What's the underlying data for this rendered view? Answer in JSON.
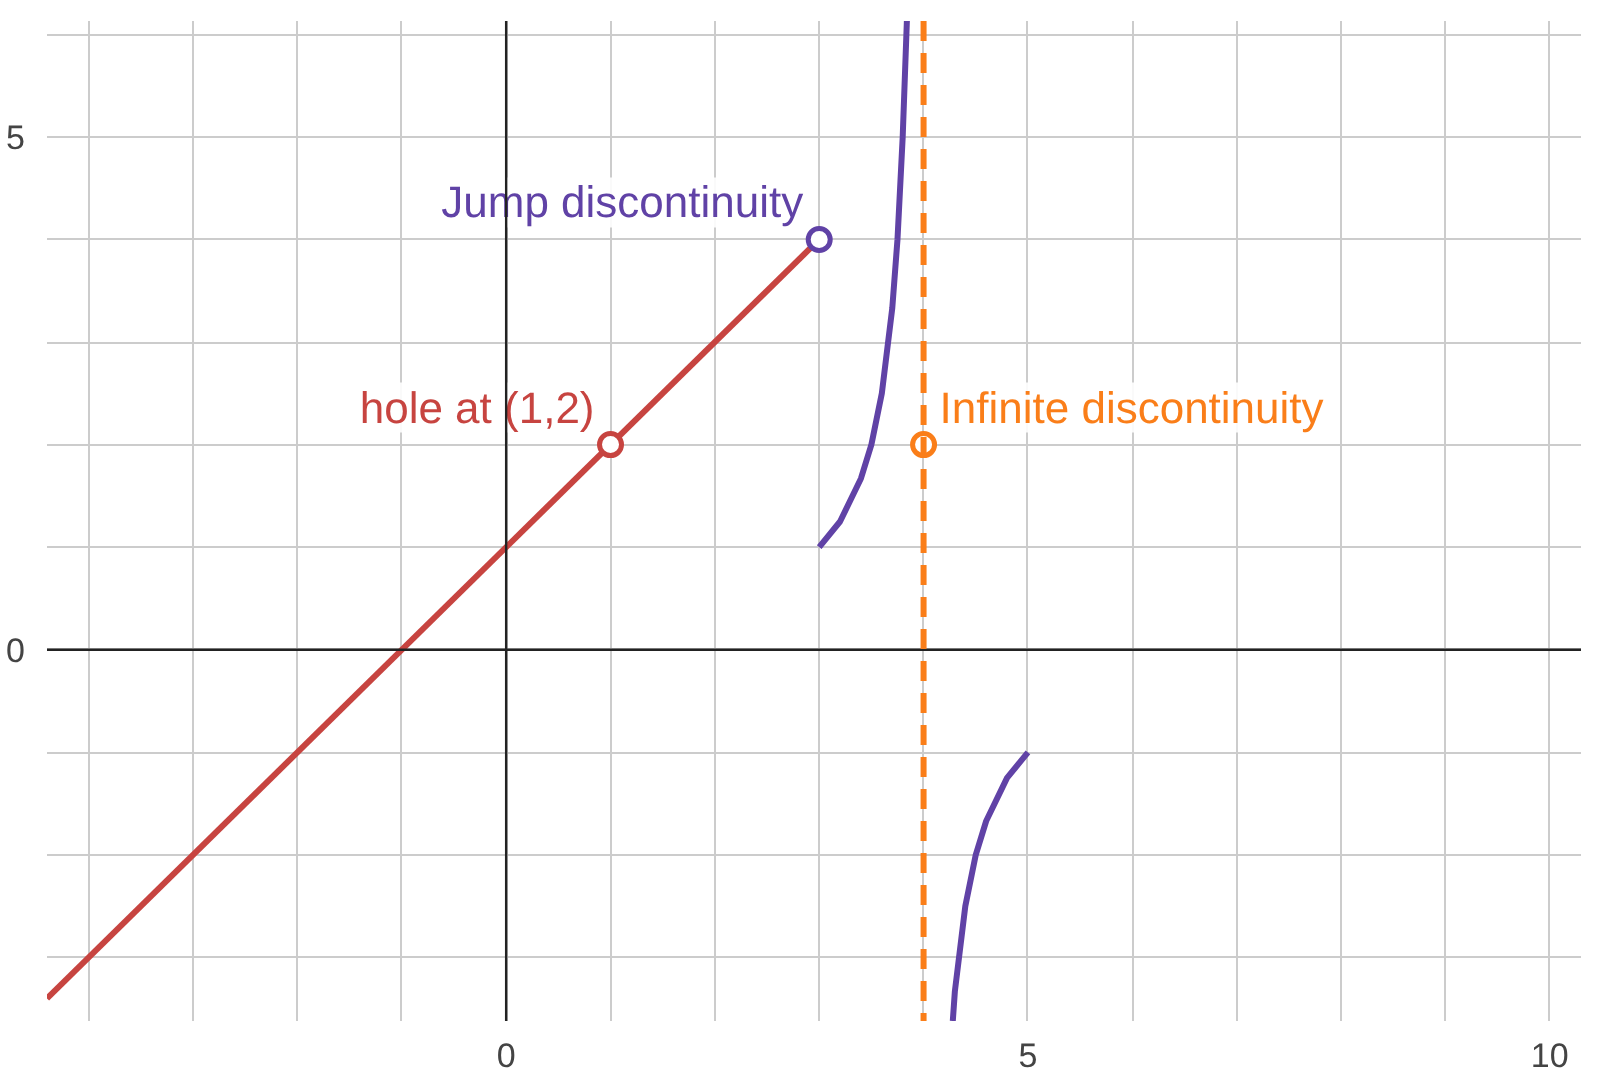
{
  "chart_data": {
    "type": "line",
    "xlim": [
      -4.4,
      10.3
    ],
    "ylim": [
      -3.62,
      6.13
    ],
    "xticks": [
      {
        "value": -4,
        "label": null
      },
      {
        "value": -3,
        "label": null
      },
      {
        "value": -2,
        "label": null
      },
      {
        "value": -1,
        "label": null
      },
      0,
      {
        "value": 1,
        "label": null
      },
      {
        "value": 2,
        "label": null
      },
      {
        "value": 3,
        "label": null
      },
      {
        "value": 4,
        "label": null
      },
      5,
      {
        "value": 6,
        "label": null
      },
      {
        "value": 7,
        "label": null
      },
      {
        "value": 8,
        "label": null
      },
      {
        "value": 9,
        "label": null
      },
      10
    ],
    "yticks": [
      {
        "value": -3,
        "label": null
      },
      {
        "value": -2,
        "label": null
      },
      {
        "value": -1,
        "label": null
      },
      0,
      {
        "value": 1,
        "label": null
      },
      {
        "value": 2,
        "label": null
      },
      {
        "value": 3,
        "label": null
      },
      {
        "value": 4,
        "label": null
      },
      5,
      {
        "value": 6,
        "label": null
      }
    ],
    "grid": true,
    "line_style": "solid",
    "series": [
      {
        "color": "#c74440",
        "x": [
          -4.4,
          3
        ],
        "values": [
          -3.4,
          4
        ]
      },
      {
        "color": "#6042a6",
        "x": [
          3,
          3.2,
          3.4,
          3.5,
          3.6,
          3.7,
          3.75,
          3.8,
          3.84,
          4,
          4.28,
          4.3,
          4.4,
          4.5,
          4.6,
          4.8,
          5
        ],
        "values": [
          1,
          1.25,
          1.67,
          2,
          2.5,
          3.33,
          4,
          5,
          6.13,
          null,
          -3.62,
          -3.33,
          -2.5,
          -2,
          -1.67,
          -1.25,
          -1
        ]
      },
      {
        "type": "scatter",
        "marker": "circle",
        "color": "#c74440",
        "x": [
          1
        ],
        "values": [
          2
        ]
      },
      {
        "type": "scatter",
        "marker": "circle",
        "color": "#6042a6",
        "x": [
          3
        ],
        "values": [
          4
        ]
      },
      {
        "type": "scatter",
        "marker": "circle",
        "color": "#fa7e19",
        "x": [
          4
        ],
        "values": [
          2
        ]
      }
    ],
    "ref_lines": [
      {
        "axis": "x",
        "value": 4,
        "color": "#fa7e19",
        "line_style": "dashed"
      }
    ],
    "annotations": [
      {
        "text": "Jump discontinuity",
        "x": 3,
        "y": 4
      },
      {
        "text": "hole at (1,2)",
        "x": 1,
        "y": 2
      },
      {
        "text": "Infinite discontinuity",
        "x": 4,
        "y": 2
      }
    ]
  }
}
